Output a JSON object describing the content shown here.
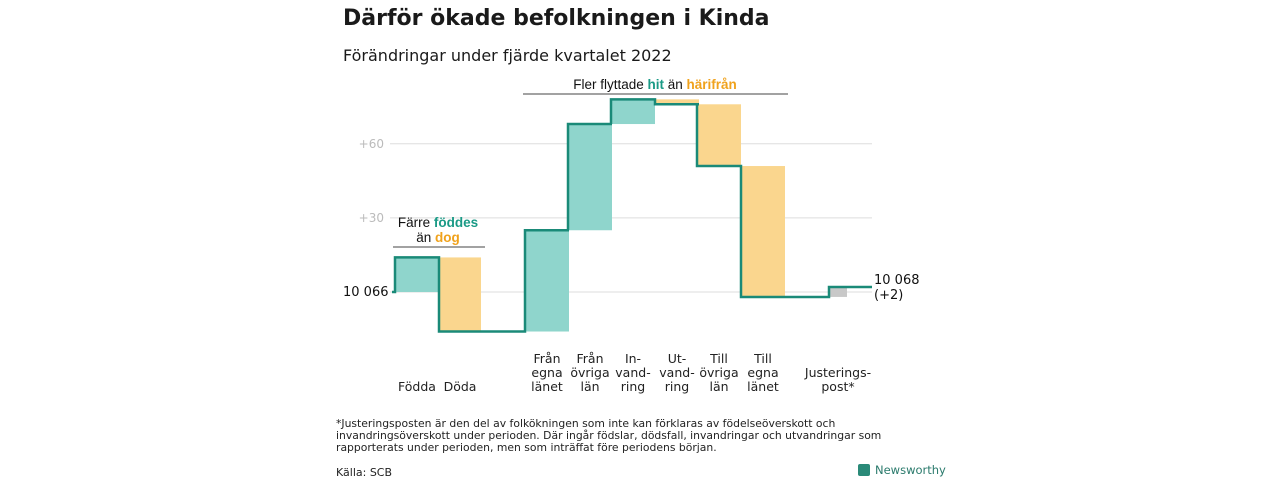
{
  "title": "Därför ökade befolkningen i Kinda",
  "subtitle": "Förändringar under fjärde kvartalet 2022",
  "annotations": {
    "left": {
      "line1": "Färre ",
      "line1_highlight": "föddes",
      "line2": "än ",
      "line2_highlight": "dog"
    },
    "top": {
      "prefix": "Fler flyttade ",
      "highlight1": "hit",
      "middle": " än ",
      "highlight2": "härifrån"
    }
  },
  "colors": {
    "increase": "#8fd5cc",
    "decrease": "#fad68e",
    "adjustment": "#c8c8c8",
    "line": "#1a8a78",
    "teal_text": "#1a9a86",
    "orange_text": "#f0a21c"
  },
  "chart_data": {
    "type": "waterfall",
    "title": "Därför ökade befolkningen i Kinda",
    "subtitle": "Förändringar under fjärde kvartalet 2022",
    "start_label": "10 066",
    "start_value": 10066,
    "end_label": "10 068",
    "end_change_label": "(+2)",
    "yticks": [
      {
        "value": 30,
        "label": "+30"
      },
      {
        "value": 60,
        "label": "+60"
      }
    ],
    "ylim": [
      -17,
      80
    ],
    "categories": [
      {
        "lines": [
          "Födda"
        ],
        "delta": 14,
        "kind": "increase"
      },
      {
        "lines": [
          "Döda"
        ],
        "delta": -30,
        "kind": "decrease"
      },
      {
        "lines": [
          "Från",
          "egna",
          "länet"
        ],
        "delta": 41,
        "kind": "increase"
      },
      {
        "lines": [
          "Från",
          "övriga",
          "län"
        ],
        "delta": 43,
        "kind": "increase"
      },
      {
        "lines": [
          "In-",
          "vand-",
          "ring"
        ],
        "delta": 10,
        "kind": "increase"
      },
      {
        "lines": [
          "Ut-",
          "vand-",
          "ring"
        ],
        "delta": -2,
        "kind": "decrease"
      },
      {
        "lines": [
          "Till",
          "övriga",
          "län"
        ],
        "delta": -25,
        "kind": "decrease"
      },
      {
        "lines": [
          "Till",
          "egna",
          "länet"
        ],
        "delta": -53,
        "kind": "decrease"
      },
      {
        "lines": [
          "Justerings-",
          "post*"
        ],
        "delta": 4,
        "kind": "adjustment"
      }
    ]
  },
  "footnote": "*Justeringsposten är den del av folkökningen som inte kan förklaras av födelseöverskott och invandringsöverskott under perioden. Där ingår födslar, dödsfall, invandringar och utvandringar som rapporterats under perioden, men som inträffat före periodens början.",
  "source": "Källa: SCB",
  "brand": "Newsworthy"
}
